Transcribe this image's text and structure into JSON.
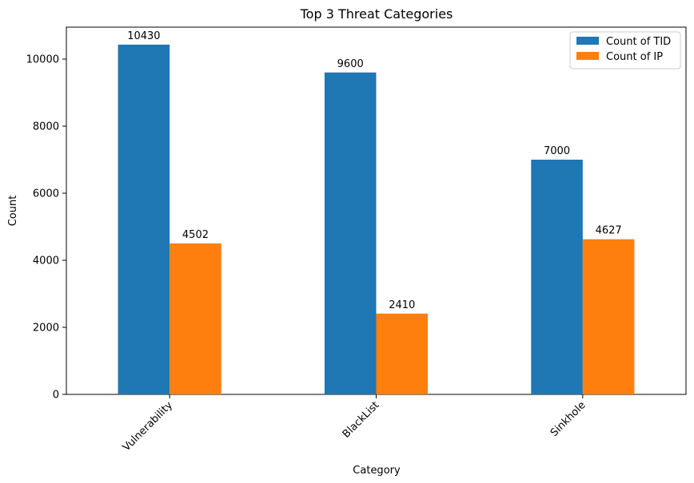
{
  "chart_data": {
    "type": "bar",
    "title": "Top 3 Threat Categories",
    "xlabel": "Category",
    "ylabel": "Count",
    "categories": [
      "Vulnerability",
      "BlackList",
      "Sinkhole"
    ],
    "series": [
      {
        "name": "Count of TID",
        "color": "#1f77b4",
        "values": [
          10430,
          9600,
          7000
        ]
      },
      {
        "name": "Count of IP",
        "color": "#ff7f0e",
        "values": [
          4502,
          2410,
          4627
        ]
      }
    ],
    "ylim": [
      0,
      10952
    ],
    "yticks": [
      0,
      2000,
      4000,
      6000,
      8000,
      10000
    ],
    "ytick_labels": [
      "0",
      "2000",
      "4000",
      "6000",
      "8000",
      "10000"
    ],
    "grid": false,
    "legend_position": "top-right",
    "data_labels": true
  }
}
